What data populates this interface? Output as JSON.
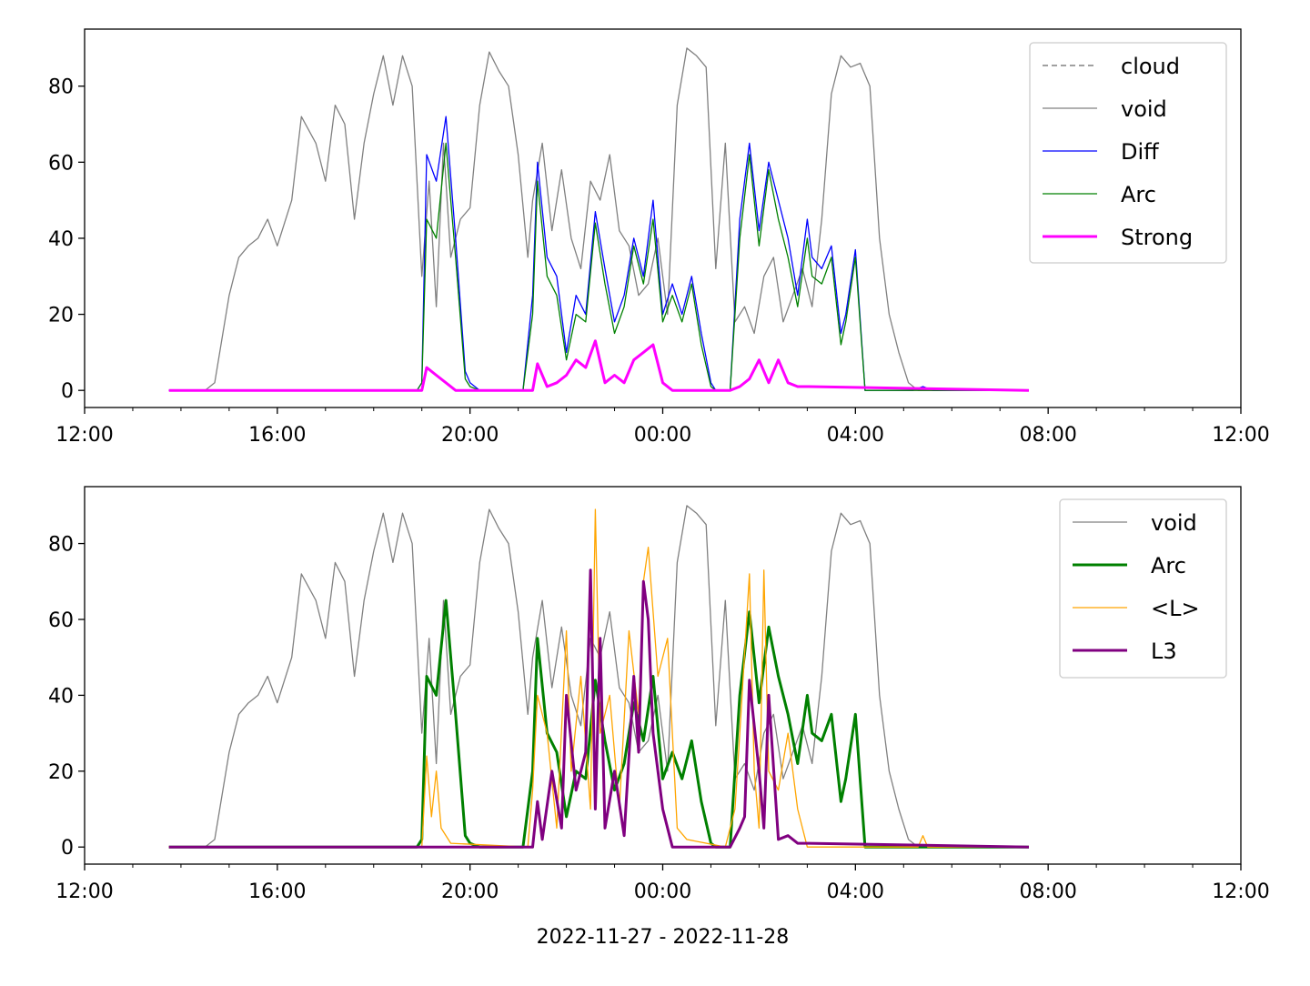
{
  "chart_data": [
    {
      "type": "line",
      "title": "",
      "xlabel": "",
      "ylabel": "",
      "x_range": [
        "12:00",
        "12:00"
      ],
      "ylim": [
        -4.5,
        95
      ],
      "x_ticks": [
        "12:00",
        "16:00",
        "20:00",
        "00:00",
        "04:00",
        "08:00",
        "12:00"
      ],
      "y_ticks": [
        "0",
        "20",
        "40",
        "60",
        "80"
      ],
      "legend_position": "top-right",
      "series": [
        {
          "name": "cloud",
          "color": "#808080",
          "style": "dashed",
          "x": [],
          "values": []
        },
        {
          "name": "void",
          "color": "#808080",
          "style": "solid",
          "x": [
            13.75,
            14.5,
            14.7,
            15.0,
            15.2,
            15.4,
            15.6,
            15.8,
            16.0,
            16.3,
            16.5,
            16.8,
            17.0,
            17.2,
            17.4,
            17.6,
            17.8,
            18.0,
            18.2,
            18.4,
            18.6,
            18.8,
            19.0,
            19.15,
            19.3,
            19.45,
            19.6,
            19.8,
            20.0,
            20.2,
            20.4,
            20.6,
            20.8,
            21.0,
            21.2,
            21.3,
            21.5,
            21.7,
            21.9,
            22.1,
            22.3,
            22.5,
            22.7,
            22.9,
            23.1,
            23.3,
            23.5,
            23.7,
            23.9,
            24.1,
            24.3,
            24.5,
            24.7,
            24.9,
            25.1,
            25.3,
            25.5,
            25.7,
            25.9,
            26.1,
            26.3,
            26.5,
            26.7,
            26.9,
            27.1,
            27.3,
            27.5,
            27.7,
            27.9,
            28.1,
            28.3,
            28.5,
            28.7,
            28.9,
            29.1,
            29.3,
            29.5,
            29.7,
            29.9,
            30.1,
            30.3,
            31.6
          ],
          "values": [
            0,
            0,
            2,
            25,
            35,
            38,
            40,
            45,
            38,
            50,
            72,
            65,
            55,
            75,
            70,
            45,
            65,
            78,
            88,
            75,
            88,
            80,
            30,
            55,
            22,
            65,
            35,
            45,
            48,
            75,
            89,
            84,
            80,
            62,
            35,
            50,
            65,
            42,
            58,
            40,
            32,
            55,
            50,
            62,
            42,
            38,
            25,
            28,
            40,
            20,
            75,
            90,
            88,
            85,
            32,
            65,
            18,
            22,
            15,
            30,
            35,
            18,
            25,
            32,
            22,
            45,
            78,
            88,
            85,
            86,
            80,
            40,
            20,
            10,
            2,
            0,
            0,
            0,
            0,
            0,
            0,
            0
          ],
          "width": 1.3
        },
        {
          "name": "Diff",
          "color": "#0000ff",
          "style": "solid",
          "x": [
            13.75,
            18.9,
            19.0,
            19.1,
            19.3,
            19.5,
            19.7,
            19.9,
            20.0,
            20.2,
            20.4,
            20.6,
            21.1,
            21.3,
            21.4,
            21.6,
            21.8,
            22.0,
            22.2,
            22.4,
            22.6,
            22.8,
            23.0,
            23.2,
            23.4,
            23.6,
            23.8,
            24.0,
            24.2,
            24.4,
            24.6,
            24.8,
            25.0,
            25.1,
            25.2,
            25.4,
            25.6,
            25.8,
            26.0,
            26.2,
            26.4,
            26.6,
            26.8,
            27.0,
            27.1,
            27.3,
            27.5,
            27.7,
            27.8,
            28.0,
            28.2,
            29.0,
            29.2,
            29.4,
            29.6,
            31.6
          ],
          "values": [
            0,
            0,
            2,
            62,
            55,
            72,
            40,
            5,
            2,
            0,
            0,
            0,
            0,
            25,
            60,
            35,
            30,
            10,
            25,
            20,
            47,
            32,
            18,
            25,
            40,
            30,
            50,
            20,
            28,
            20,
            30,
            15,
            2,
            0,
            0,
            0,
            45,
            65,
            42,
            60,
            50,
            40,
            25,
            45,
            35,
            32,
            38,
            15,
            20,
            37,
            0,
            0,
            0,
            1,
            0,
            0
          ],
          "width": 1.3
        },
        {
          "name": "Arc",
          "color": "#008000",
          "style": "solid",
          "x": [
            13.75,
            18.9,
            19.0,
            19.1,
            19.3,
            19.5,
            19.7,
            19.9,
            20.0,
            20.2,
            20.4,
            20.6,
            21.1,
            21.3,
            21.4,
            21.6,
            21.8,
            22.0,
            22.2,
            22.4,
            22.6,
            22.8,
            23.0,
            23.2,
            23.4,
            23.6,
            23.8,
            24.0,
            24.2,
            24.4,
            24.6,
            24.8,
            25.0,
            25.1,
            25.2,
            25.4,
            25.6,
            25.8,
            26.0,
            26.2,
            26.4,
            26.6,
            26.8,
            27.0,
            27.1,
            27.3,
            27.5,
            27.7,
            27.8,
            28.0,
            28.2,
            31.6
          ],
          "values": [
            0,
            0,
            2,
            45,
            40,
            65,
            35,
            3,
            1,
            0,
            0,
            0,
            0,
            20,
            55,
            30,
            25,
            8,
            20,
            18,
            44,
            28,
            15,
            22,
            38,
            28,
            45,
            18,
            25,
            18,
            28,
            12,
            1,
            0,
            0,
            0,
            40,
            62,
            38,
            58,
            45,
            35,
            22,
            40,
            30,
            28,
            35,
            12,
            18,
            35,
            0,
            0
          ],
          "width": 1.3
        },
        {
          "name": "Strong",
          "color": "#ff00ff",
          "style": "solid",
          "x": [
            13.75,
            19.0,
            19.1,
            19.3,
            19.5,
            19.7,
            21.3,
            21.4,
            21.6,
            21.8,
            22.0,
            22.2,
            22.4,
            22.6,
            22.8,
            23.0,
            23.2,
            23.4,
            23.6,
            23.8,
            24.0,
            24.2,
            25.4,
            25.6,
            25.8,
            26.0,
            26.2,
            26.4,
            26.6,
            26.8,
            27.0,
            31.6
          ],
          "values": [
            0,
            0,
            6,
            4,
            2,
            0,
            0,
            7,
            1,
            2,
            4,
            8,
            6,
            13,
            2,
            4,
            2,
            8,
            10,
            12,
            2,
            0,
            0,
            1,
            3,
            8,
            2,
            8,
            2,
            1,
            1,
            0
          ],
          "width": 3
        }
      ]
    },
    {
      "type": "line",
      "title": "",
      "xlabel": "2022-11-27 - 2022-11-28",
      "ylabel": "",
      "x_range": [
        "12:00",
        "12:00"
      ],
      "ylim": [
        -4.5,
        95
      ],
      "x_ticks": [
        "12:00",
        "16:00",
        "20:00",
        "00:00",
        "04:00",
        "08:00",
        "12:00"
      ],
      "y_ticks": [
        "0",
        "20",
        "40",
        "60",
        "80"
      ],
      "legend_position": "top-right",
      "series": [
        {
          "name": "void",
          "color": "#808080",
          "style": "solid",
          "x": [
            13.75,
            14.5,
            14.7,
            15.0,
            15.2,
            15.4,
            15.6,
            15.8,
            16.0,
            16.3,
            16.5,
            16.8,
            17.0,
            17.2,
            17.4,
            17.6,
            17.8,
            18.0,
            18.2,
            18.4,
            18.6,
            18.8,
            19.0,
            19.15,
            19.3,
            19.45,
            19.6,
            19.8,
            20.0,
            20.2,
            20.4,
            20.6,
            20.8,
            21.0,
            21.2,
            21.3,
            21.5,
            21.7,
            21.9,
            22.1,
            22.3,
            22.5,
            22.7,
            22.9,
            23.1,
            23.3,
            23.5,
            23.7,
            23.9,
            24.1,
            24.3,
            24.5,
            24.7,
            24.9,
            25.1,
            25.3,
            25.5,
            25.7,
            25.9,
            26.1,
            26.3,
            26.5,
            26.7,
            26.9,
            27.1,
            27.3,
            27.5,
            27.7,
            27.9,
            28.1,
            28.3,
            28.5,
            28.7,
            28.9,
            29.1,
            29.3,
            29.5,
            29.7,
            29.9,
            30.1,
            30.3,
            31.6
          ],
          "values": [
            0,
            0,
            2,
            25,
            35,
            38,
            40,
            45,
            38,
            50,
            72,
            65,
            55,
            75,
            70,
            45,
            65,
            78,
            88,
            75,
            88,
            80,
            30,
            55,
            22,
            65,
            35,
            45,
            48,
            75,
            89,
            84,
            80,
            62,
            35,
            50,
            65,
            42,
            58,
            40,
            32,
            55,
            50,
            62,
            42,
            38,
            25,
            28,
            40,
            20,
            75,
            90,
            88,
            85,
            32,
            65,
            18,
            22,
            15,
            30,
            35,
            18,
            25,
            32,
            22,
            45,
            78,
            88,
            85,
            86,
            80,
            40,
            20,
            10,
            2,
            0,
            0,
            0,
            0,
            0,
            0,
            0
          ],
          "width": 1.3
        },
        {
          "name": "Arc",
          "color": "#008000",
          "style": "solid",
          "x": [
            13.75,
            18.9,
            19.0,
            19.1,
            19.3,
            19.5,
            19.7,
            19.9,
            20.0,
            20.2,
            20.4,
            20.6,
            21.1,
            21.3,
            21.4,
            21.6,
            21.8,
            22.0,
            22.2,
            22.4,
            22.6,
            22.8,
            23.0,
            23.2,
            23.4,
            23.6,
            23.8,
            24.0,
            24.2,
            24.4,
            24.6,
            24.8,
            25.0,
            25.1,
            25.2,
            25.4,
            25.6,
            25.8,
            26.0,
            26.2,
            26.4,
            26.6,
            26.8,
            27.0,
            27.1,
            27.3,
            27.5,
            27.7,
            27.8,
            28.0,
            28.2,
            31.6
          ],
          "values": [
            0,
            0,
            2,
            45,
            40,
            65,
            35,
            3,
            1,
            0,
            0,
            0,
            0,
            20,
            55,
            30,
            25,
            8,
            20,
            18,
            44,
            28,
            15,
            22,
            38,
            28,
            45,
            18,
            25,
            18,
            28,
            12,
            1,
            0,
            0,
            0,
            40,
            62,
            38,
            58,
            45,
            35,
            22,
            40,
            30,
            28,
            35,
            12,
            18,
            35,
            0,
            0
          ],
          "width": 3
        },
        {
          "name": "<L>",
          "color": "#ffa500",
          "style": "solid",
          "x": [
            13.75,
            19.0,
            19.1,
            19.2,
            19.3,
            19.4,
            19.6,
            21.2,
            21.3,
            21.4,
            21.6,
            21.8,
            22.0,
            22.1,
            22.3,
            22.5,
            22.6,
            22.7,
            22.9,
            23.1,
            23.3,
            23.5,
            23.6,
            23.7,
            23.9,
            24.1,
            24.3,
            24.5,
            25.3,
            25.5,
            25.6,
            25.8,
            25.9,
            26.0,
            26.1,
            26.2,
            26.4,
            26.6,
            26.8,
            27.0,
            29.3,
            29.4,
            29.5,
            31.6
          ],
          "values": [
            0,
            0,
            24,
            8,
            20,
            5,
            1,
            0,
            15,
            40,
            30,
            5,
            57,
            20,
            45,
            10,
            89,
            30,
            40,
            10,
            57,
            35,
            70,
            79,
            45,
            55,
            5,
            2,
            0,
            10,
            30,
            72,
            20,
            5,
            73,
            20,
            15,
            30,
            10,
            0,
            0,
            3,
            0,
            0
          ],
          "width": 1.3
        },
        {
          "name": "L3",
          "color": "#800080",
          "style": "solid",
          "x": [
            13.75,
            21.3,
            21.4,
            21.5,
            21.7,
            21.9,
            22.0,
            22.2,
            22.4,
            22.5,
            22.6,
            22.7,
            22.8,
            23.0,
            23.2,
            23.4,
            23.5,
            23.6,
            23.7,
            23.8,
            24.0,
            24.2,
            25.4,
            25.6,
            25.7,
            25.8,
            26.0,
            26.1,
            26.2,
            26.4,
            26.6,
            26.8,
            27.0,
            31.6
          ],
          "values": [
            0,
            0,
            12,
            2,
            20,
            5,
            40,
            15,
            25,
            73,
            10,
            55,
            5,
            20,
            3,
            45,
            25,
            70,
            60,
            30,
            10,
            0,
            0,
            5,
            8,
            44,
            20,
            5,
            40,
            2,
            3,
            1,
            1,
            0
          ],
          "width": 3
        }
      ]
    }
  ]
}
